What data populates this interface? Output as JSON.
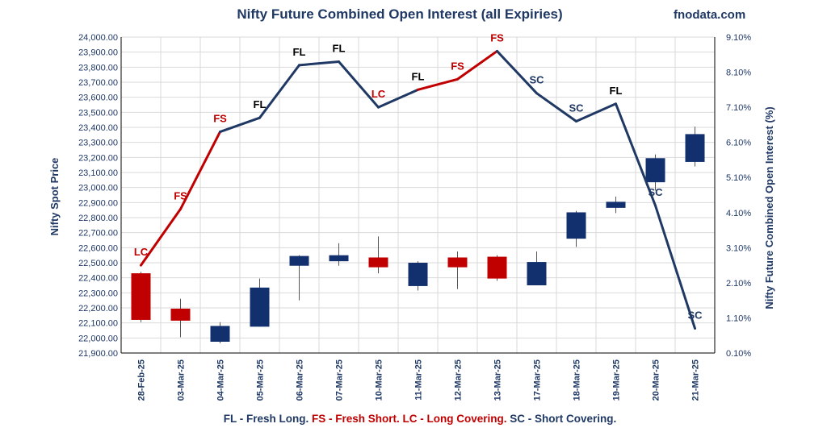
{
  "title": "Nifty Future Combined Open Interest (all Expiries)",
  "brand": "fnodata.com",
  "footer": {
    "fl": "FL - Fresh Long.",
    "fs": "FS - Fresh Short.",
    "lc": "LC - Long Covering.",
    "sc": "SC - Short Covering."
  },
  "colors": {
    "bullish": "#13306e",
    "bearish": "#c00000",
    "line_long": "#1f3864",
    "line_short": "#c00000",
    "label_fl": "#000000",
    "label_fs": "#c00000",
    "label_lc": "#c00000",
    "label_sc": "#1f3864",
    "axis_text": "#1f3864"
  },
  "chart_data": {
    "type": "candlestick+line",
    "title": "Nifty Future Combined Open Interest (all Expiries)",
    "ylabel": "Nifty Spot Price",
    "y2label": "Nifty Future Combined Open Interest (%)",
    "ylim": [
      21900,
      24000
    ],
    "y2lim": [
      0.1,
      9.1
    ],
    "yticks": [
      "21,900.00",
      "22,000.00",
      "22,100.00",
      "22,200.00",
      "22,300.00",
      "22,400.00",
      "22,500.00",
      "22,600.00",
      "22,700.00",
      "22,800.00",
      "22,900.00",
      "23,000.00",
      "23,100.00",
      "23,200.00",
      "23,300.00",
      "23,400.00",
      "23,500.00",
      "23,600.00",
      "23,700.00",
      "23,800.00",
      "23,900.00",
      "24,000.00"
    ],
    "y2ticks": [
      "0.10%",
      "1.10%",
      "2.10%",
      "3.10%",
      "4.10%",
      "5.10%",
      "6.10%",
      "7.10%",
      "8.10%",
      "9.10%"
    ],
    "grid": true,
    "categories": [
      "28-Feb-25",
      "03-Mar-25",
      "04-Mar-25",
      "05-Mar-25",
      "06-Mar-25",
      "07-Mar-25",
      "10-Mar-25",
      "11-Mar-25",
      "12-Mar-25",
      "13-Mar-25",
      "17-Mar-25",
      "18-Mar-25",
      "19-Mar-25",
      "20-Mar-25",
      "21-Mar-25"
    ],
    "candles": [
      {
        "open": 22430,
        "high": 22440,
        "low": 22105,
        "close": 22120
      },
      {
        "open": 22195,
        "high": 22260,
        "low": 22005,
        "close": 22115
      },
      {
        "open": 21975,
        "high": 22105,
        "low": 21965,
        "close": 22080
      },
      {
        "open": 22075,
        "high": 22395,
        "low": 22075,
        "close": 22335
      },
      {
        "open": 22480,
        "high": 22550,
        "low": 22250,
        "close": 22545
      },
      {
        "open": 22510,
        "high": 22630,
        "low": 22480,
        "close": 22550
      },
      {
        "open": 22535,
        "high": 22675,
        "low": 22430,
        "close": 22470
      },
      {
        "open": 22345,
        "high": 22510,
        "low": 22315,
        "close": 22500
      },
      {
        "open": 22535,
        "high": 22575,
        "low": 22325,
        "close": 22470
      },
      {
        "open": 22540,
        "high": 22550,
        "low": 22380,
        "close": 22395
      },
      {
        "open": 22350,
        "high": 22575,
        "low": 22350,
        "close": 22505
      },
      {
        "open": 22660,
        "high": 22845,
        "low": 22605,
        "close": 22835
      },
      {
        "open": 22865,
        "high": 22940,
        "low": 22830,
        "close": 22905
      },
      {
        "open": 23035,
        "high": 23220,
        "low": 22980,
        "close": 23195
      },
      {
        "open": 23170,
        "high": 23405,
        "low": 23140,
        "close": 23355
      }
    ],
    "oi_percent": [
      2.6,
      4.2,
      6.4,
      6.8,
      8.3,
      8.4,
      7.1,
      7.6,
      7.9,
      8.7,
      7.5,
      6.7,
      7.2,
      4.3,
      0.8
    ],
    "oi_labels": [
      "LC",
      "FS",
      "FS",
      "FL",
      "FL",
      "FL",
      "LC",
      "FL",
      "FS",
      "FS",
      "SC",
      "SC",
      "FL",
      "SC",
      "SC"
    ]
  }
}
